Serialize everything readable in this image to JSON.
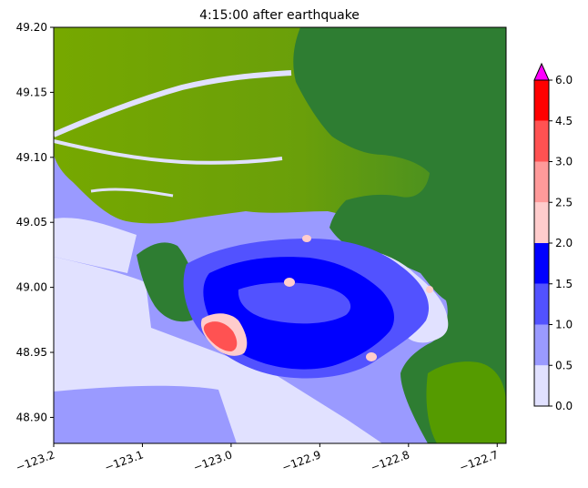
{
  "chart_data": {
    "type": "heatmap",
    "title": "4:15:00 after earthquake",
    "xlabel": "",
    "ylabel": "",
    "xlim": [
      -123.2,
      -122.69
    ],
    "ylim": [
      48.88,
      49.2
    ],
    "x_ticks": [
      "−123.2",
      "−123.1",
      "−123.0",
      "−122.9",
      "−122.8",
      "−122.7"
    ],
    "x_tick_values": [
      -123.2,
      -123.1,
      -123.0,
      -122.9,
      -122.8,
      -122.7
    ],
    "y_ticks": [
      "48.90",
      "48.95",
      "49.00",
      "49.05",
      "49.10",
      "49.15",
      "49.20"
    ],
    "y_tick_values": [
      48.9,
      48.95,
      49.0,
      49.05,
      49.1,
      49.15,
      49.2
    ],
    "grid": false,
    "colorbar": {
      "levels": [
        0.0,
        0.5,
        1.0,
        1.5,
        2.0,
        2.5,
        3.0,
        4.5,
        6.0
      ],
      "level_labels": [
        "0.0",
        "0.5",
        "1.0",
        "1.5",
        "2.0",
        "2.5",
        "3.0",
        "4.5",
        "6.0"
      ],
      "colors": [
        "#e1e1ff",
        "#9a9aff",
        "#5252ff",
        "#0000ff",
        "#ffcccc",
        "#ff9a9a",
        "#ff5252",
        "#ff0000"
      ],
      "extend_max_color": "#ff00ff"
    },
    "land_colors": {
      "lowland": "#76a800",
      "upland": "#2e7d32",
      "mid": "#559b00"
    }
  }
}
